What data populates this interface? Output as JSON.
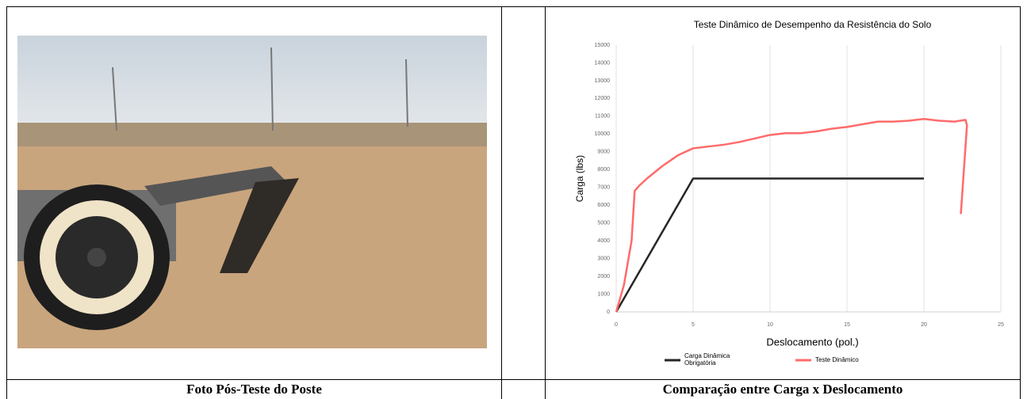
{
  "table": {
    "captions": [
      "Foto Pós-Teste do Poste",
      "Comparação entre Carga x Deslocamento"
    ]
  },
  "chart_data": {
    "type": "line",
    "title": "Teste Dinâmico de Desempenho da Resistência do Solo",
    "x_label": "Deslocamento (pol.)",
    "y_label": "Carga (lbs)",
    "xlim": [
      0,
      25
    ],
    "xticks": [
      0,
      5,
      10,
      15,
      20,
      25
    ],
    "ylim": [
      0,
      15000
    ],
    "yticks": [
      0,
      1000,
      2000,
      3000,
      4000,
      5000,
      6000,
      7000,
      8000,
      9000,
      10000,
      11000,
      12000,
      13000,
      14000,
      15000
    ],
    "grid": "x",
    "legend": "bottom",
    "series": [
      {
        "name": "Carga Dinâmica Obrigatória",
        "color": "#262626",
        "x": [
          0,
          5,
          20
        ],
        "values": [
          0,
          7500,
          7500
        ]
      },
      {
        "name": "Teste Dinâmico",
        "color": "#ff6b6b",
        "x": [
          0,
          0.5,
          1,
          1.2,
          1.5,
          2,
          3,
          4,
          5,
          6,
          7,
          8,
          9,
          10,
          11,
          12,
          13,
          14,
          15,
          16,
          17,
          18,
          19,
          20,
          21,
          22,
          22.7,
          22.8,
          22.6,
          22.4
        ],
        "values": [
          0,
          1500,
          4000,
          6800,
          7100,
          7500,
          8200,
          8800,
          9200,
          9300,
          9400,
          9550,
          9750,
          9950,
          10050,
          10050,
          10150,
          10300,
          10400,
          10550,
          10700,
          10700,
          10750,
          10850,
          10750,
          10700,
          10800,
          10500,
          8000,
          5500
        ]
      }
    ]
  }
}
